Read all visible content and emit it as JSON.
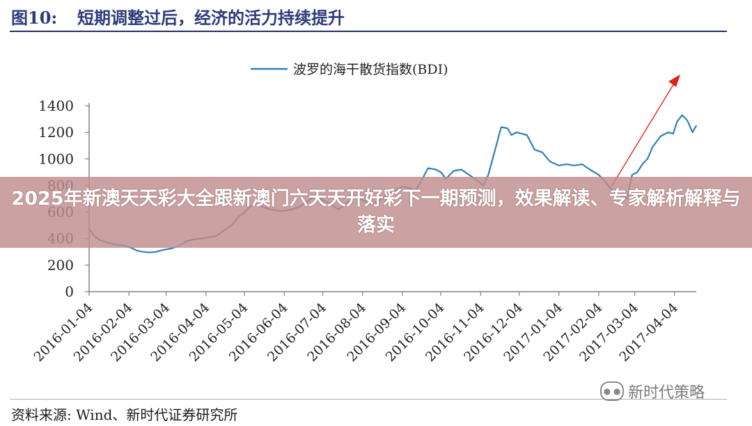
{
  "figure": {
    "number": "图10:",
    "title": "短期调整过后，经济的活力持续提升"
  },
  "source": "资料来源: Wind、新时代证券研究所",
  "watermark": "新时代策略",
  "banner": "2025年新澳天天彩大全跟新澳门六天天开好彩下一期预测，效果解读、专家解析解释与落实",
  "colors": {
    "line": "#2f7fba",
    "arrow": "#e0211b",
    "axis": "#808080",
    "title": "#2d3b7a",
    "banner": "#c18c8c"
  },
  "chart_data": {
    "type": "line",
    "legend_position": "top-center",
    "grid": false,
    "ylim": [
      0,
      1400
    ],
    "yticks": [
      "0",
      "200",
      "400",
      "600",
      "800",
      "1000",
      "1200",
      "1400"
    ],
    "xticks": [
      "2016-01-04",
      "2016-02-04",
      "2016-03-04",
      "2016-04-04",
      "2016-05-04",
      "2016-06-04",
      "2016-07-04",
      "2016-08-04",
      "2016-09-04",
      "2016-10-04",
      "2016-11-04",
      "2016-12-04",
      "2017-01-04",
      "2017-02-04",
      "2017-03-04",
      "2017-04-04"
    ],
    "series": [
      {
        "name": "波罗的海干散货指数(BDI)",
        "x": [
          "2016-01-04",
          "2016-01-08",
          "2016-01-12",
          "2016-01-18",
          "2016-01-24",
          "2016-02-01",
          "2016-02-06",
          "2016-02-10",
          "2016-02-15",
          "2016-02-20",
          "2016-02-25",
          "2016-03-02",
          "2016-03-08",
          "2016-03-14",
          "2016-03-20",
          "2016-03-26",
          "2016-04-01",
          "2016-04-06",
          "2016-04-12",
          "2016-04-18",
          "2016-04-24",
          "2016-04-29",
          "2016-05-04",
          "2016-05-08",
          "2016-05-13",
          "2016-05-18",
          "2016-05-24",
          "2016-05-30",
          "2016-06-04",
          "2016-06-10",
          "2016-06-16",
          "2016-06-22",
          "2016-06-28",
          "2016-07-04",
          "2016-07-10",
          "2016-07-16",
          "2016-07-22",
          "2016-07-28",
          "2016-08-04",
          "2016-08-10",
          "2016-08-16",
          "2016-08-22",
          "2016-08-28",
          "2016-09-04",
          "2016-09-10",
          "2016-09-14",
          "2016-09-18",
          "2016-09-24",
          "2016-09-30",
          "2016-10-04",
          "2016-10-08",
          "2016-10-14",
          "2016-10-20",
          "2016-10-26",
          "2016-11-01",
          "2016-11-06",
          "2016-11-10",
          "2016-11-15",
          "2016-11-20",
          "2016-11-25",
          "2016-11-28",
          "2016-12-02",
          "2016-12-06",
          "2016-12-10",
          "2016-12-16",
          "2016-12-22",
          "2016-12-28",
          "2017-01-04",
          "2017-01-10",
          "2017-01-16",
          "2017-01-22",
          "2017-01-28",
          "2017-02-04",
          "2017-02-08",
          "2017-02-12",
          "2017-02-16",
          "2017-02-22",
          "2017-02-26",
          "2017-03-02",
          "2017-03-06",
          "2017-03-10",
          "2017-03-14",
          "2017-03-18",
          "2017-03-24",
          "2017-03-30",
          "2017-04-03",
          "2017-04-06",
          "2017-04-10",
          "2017-04-14",
          "2017-04-18",
          "2017-04-21"
        ],
        "values": [
          473,
          420,
          390,
          370,
          355,
          345,
          330,
          310,
          300,
          295,
          300,
          315,
          325,
          345,
          380,
          395,
          400,
          410,
          420,
          460,
          500,
          560,
          600,
          640,
          660,
          640,
          620,
          610,
          610,
          620,
          640,
          680,
          720,
          690,
          660,
          620,
          660,
          720,
          690,
          660,
          680,
          720,
          760,
          790,
          780,
          760,
          820,
          930,
          920,
          900,
          850,
          910,
          920,
          880,
          840,
          800,
          880,
          1060,
          1240,
          1230,
          1180,
          1200,
          1190,
          1180,
          1070,
          1050,
          980,
          950,
          960,
          950,
          960,
          920,
          880,
          840,
          790,
          750,
          720,
          700,
          880,
          900,
          960,
          1000,
          1090,
          1170,
          1200,
          1190,
          1280,
          1330,
          1290,
          1200,
          1250
        ]
      }
    ]
  }
}
